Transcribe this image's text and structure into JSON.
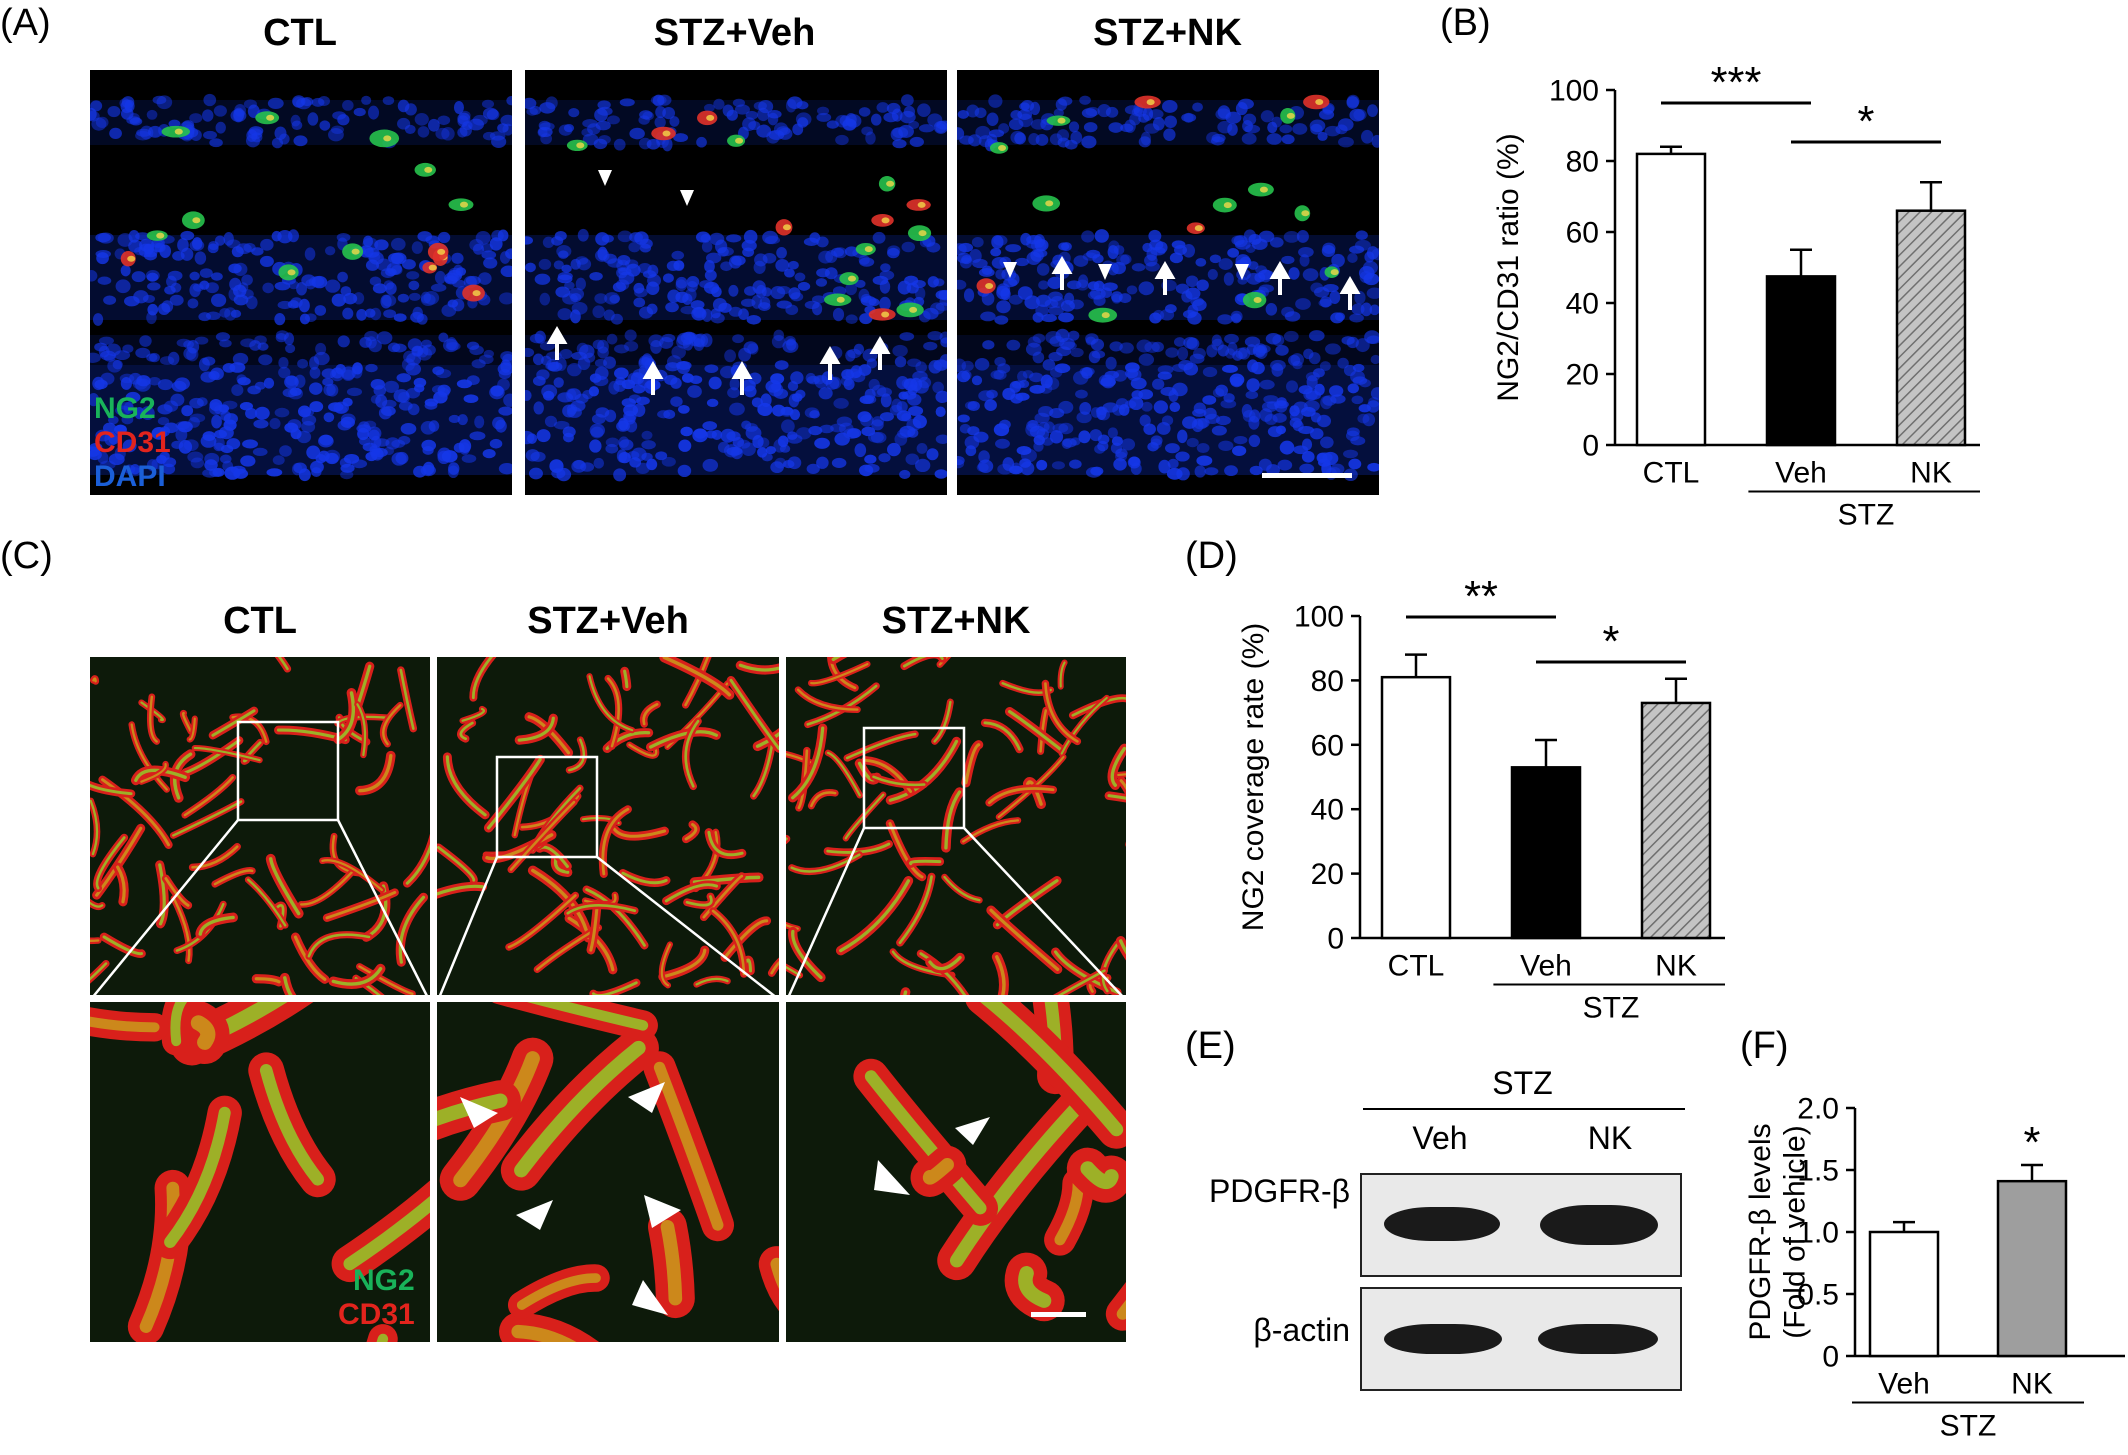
{
  "panels": {
    "A": {
      "label": "(A)",
      "titles": [
        "CTL",
        "STZ+Veh",
        "STZ+NK"
      ],
      "legend": [
        {
          "text": "NG2",
          "color": "#19b35a"
        },
        {
          "text": "CD31",
          "color": "#e2241d"
        },
        {
          "text": "DAPI",
          "color": "#1b5fd8"
        }
      ]
    },
    "B": {
      "label": "(B)"
    },
    "C": {
      "label": "(C)",
      "titles": [
        "CTL",
        "STZ+Veh",
        "STZ+NK"
      ],
      "legend": [
        {
          "text": "NG2",
          "color": "#19b35a"
        },
        {
          "text": "CD31",
          "color": "#e2241d"
        }
      ]
    },
    "D": {
      "label": "(D)"
    },
    "E": {
      "label": "(E)",
      "group": "STZ",
      "lanes": [
        "Veh",
        "NK"
      ],
      "rows": [
        "PDGFR-β",
        "β-actin"
      ]
    },
    "F": {
      "label": "(F)"
    }
  },
  "chart_data": [
    {
      "panel": "B",
      "type": "bar",
      "categories": [
        "CTL",
        "Veh",
        "NK"
      ],
      "values": [
        82,
        47.5,
        66
      ],
      "errors": [
        2,
        7.5,
        8
      ],
      "group_label": "STZ",
      "group_members": [
        "Veh",
        "NK"
      ],
      "ylabel": "NG2/CD31 ratio (%)",
      "ylim": [
        0,
        100
      ],
      "yticks": [
        "0",
        "20",
        "40",
        "60",
        "80",
        "100"
      ],
      "fills": [
        "#ffffff",
        "#000000",
        "#b7b7b7"
      ],
      "significance": [
        {
          "from": "CTL",
          "to": "Veh",
          "text": "***"
        },
        {
          "from": "Veh",
          "to": "NK",
          "text": "*"
        }
      ]
    },
    {
      "panel": "D",
      "type": "bar",
      "categories": [
        "CTL",
        "Veh",
        "NK"
      ],
      "values": [
        81,
        53,
        73
      ],
      "errors": [
        7,
        8.5,
        7.5
      ],
      "group_label": "STZ",
      "group_members": [
        "Veh",
        "NK"
      ],
      "ylabel": "NG2 coverage rate (%)",
      "ylim": [
        0,
        100
      ],
      "yticks": [
        "0",
        "20",
        "40",
        "60",
        "80",
        "100"
      ],
      "fills": [
        "#ffffff",
        "#000000",
        "#b7b7b7"
      ],
      "significance": [
        {
          "from": "CTL",
          "to": "Veh",
          "text": "**"
        },
        {
          "from": "Veh",
          "to": "NK",
          "text": "*"
        }
      ]
    },
    {
      "panel": "F",
      "type": "bar",
      "categories": [
        "Veh",
        "NK"
      ],
      "values": [
        1.0,
        1.41
      ],
      "errors": [
        0.08,
        0.13
      ],
      "group_label": "STZ",
      "group_members": [
        "Veh",
        "NK"
      ],
      "ylabel_lines": [
        "PDGFR-β levels",
        "(Fold of vehicle)"
      ],
      "ylim": [
        0,
        2.0
      ],
      "yticks": [
        "0",
        "0.5",
        "1.0",
        "1.5",
        "2.0"
      ],
      "fills": [
        "#ffffff",
        "#9e9e9e"
      ],
      "significance_above": [
        {
          "bar": "NK",
          "text": "*"
        }
      ]
    }
  ]
}
